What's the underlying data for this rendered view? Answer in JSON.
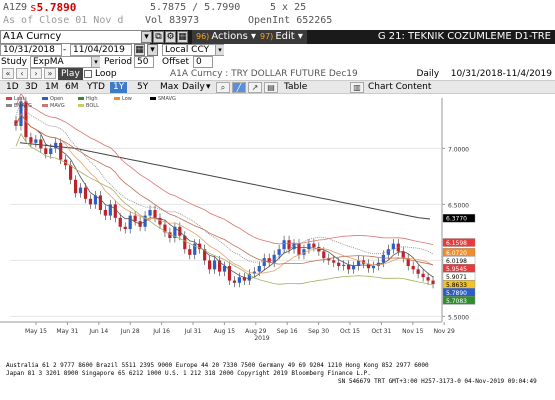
{
  "ticker": {
    "symbol": "A1Z9",
    "price_prefix": "s",
    "price": "5.7890",
    "bid_ask": "5.7875 / 5.7990",
    "size": "5 x 25",
    "as_of": "As of Close 01 Nov d",
    "vol_label": "Vol",
    "vol_value": "83973",
    "oi_label": "OpenInt",
    "oi_value": "652265"
  },
  "command_bar": {
    "security": "A1A Curncy",
    "actions_num": "96)",
    "actions_label": "Actions",
    "edit_num": "97)",
    "edit_label": "Edit",
    "title": "G 21: TEKNIK COZUMLEME D1-TRE"
  },
  "settings": {
    "start_date": "10/31/2018",
    "end_date": "11/04/2019",
    "currency": "Local CCY",
    "study_label": "Study",
    "study_value": "ExpMA",
    "period_label": "Period",
    "period_value": "50",
    "offset_label": "Offset",
    "offset_value": "0",
    "play_label": "Play",
    "loop_label": "Loop",
    "chart_title": "A1A Curncy : TRY DOLLAR FUTURE Dec19",
    "frequency": "Daily",
    "range": "10/31/2018-11/4/2019"
  },
  "toolbar": {
    "periods": [
      "1D",
      "3D",
      "1M",
      "6M",
      "YTD",
      "1Y",
      "5Y",
      "Max"
    ],
    "active_period": "1Y",
    "frequency": "Daily",
    "table_label": "Table",
    "chart_content_label": "Chart Content"
  },
  "legend": [
    "Last",
    "Open",
    "High",
    "Low",
    "SMAVG",
    "EMAVG",
    "MAVG",
    "BOLL"
  ],
  "chart_data": {
    "type": "candlestick",
    "x_tick_labels": [
      "May 15",
      "May 31",
      "Jun 14",
      "Jun 28",
      "Jul 16",
      "Jul 31",
      "Aug 15",
      "Aug 29",
      "Sep 16",
      "Sep 30",
      "Oct 15",
      "Oct 31",
      "Nov 15",
      "Nov 29"
    ],
    "year_label": "2019",
    "y_tick_labels": [
      "7.0000",
      "6.5000",
      "6.0000",
      "5.5000"
    ],
    "ylim": [
      5.45,
      7.45
    ],
    "value_tags": [
      {
        "label": "6.3770",
        "value": 6.377,
        "color": "#000000",
        "text_color": "#ffffff"
      },
      {
        "label": "6.1598",
        "value": 6.1598,
        "color": "#e83a3a",
        "text_color": "#ffffff"
      },
      {
        "label": "6.0720",
        "value": 6.072,
        "color": "#f08c2a",
        "text_color": "#ffffff"
      },
      {
        "label": "6.0198",
        "value": 6.0198,
        "color": "#ffffff",
        "text_color": "#000000"
      },
      {
        "label": "5.9545",
        "value": 5.9545,
        "color": "#e83a3a",
        "text_color": "#ffffff"
      },
      {
        "label": "5.9071",
        "value": 5.9071,
        "color": "#ffffff",
        "text_color": "#000000"
      },
      {
        "label": "5.8633",
        "value": 5.8633,
        "color": "#f2c12e",
        "text_color": "#000000"
      },
      {
        "label": "5.7890",
        "value": 5.789,
        "color": "#2b5fc7",
        "text_color": "#ffffff"
      },
      {
        "label": "5.7083",
        "value": 5.7083,
        "color": "#2f8f2f",
        "text_color": "#ffffff"
      }
    ],
    "close_values": [
      7.2,
      7.42,
      7.1,
      7.05,
      7.08,
      7.0,
      6.95,
      7.0,
      7.05,
      6.9,
      6.85,
      6.72,
      6.6,
      6.65,
      6.55,
      6.5,
      6.58,
      6.45,
      6.4,
      6.5,
      6.38,
      6.3,
      6.28,
      6.4,
      6.35,
      6.3,
      6.4,
      6.45,
      6.38,
      6.32,
      6.25,
      6.2,
      6.3,
      6.22,
      6.1,
      6.05,
      6.15,
      6.1,
      6.0,
      5.92,
      6.0,
      5.9,
      5.95,
      5.82,
      5.8,
      5.85,
      5.82,
      5.88,
      5.9,
      5.95,
      6.02,
      5.98,
      6.05,
      6.1,
      6.18,
      6.1,
      6.15,
      6.05,
      6.1,
      6.15,
      6.12,
      6.08,
      6.02,
      6.0,
      5.98,
      5.95,
      5.96,
      5.92,
      5.95,
      6.0,
      5.97,
      5.93,
      5.95,
      5.98,
      6.05,
      6.1,
      6.15,
      6.08,
      6.02,
      5.95,
      5.92,
      5.88,
      5.85,
      5.82,
      5.79
    ],
    "ema_long": [
      7.05,
      7.04,
      7.03,
      7.02,
      7.01,
      7.0,
      6.98,
      6.96,
      6.94,
      6.92,
      6.9,
      6.88,
      6.86,
      6.84,
      6.82,
      6.8,
      6.78,
      6.76,
      6.74,
      6.72,
      6.7,
      6.68,
      6.66,
      6.64,
      6.62,
      6.6,
      6.58,
      6.56,
      6.54,
      6.52,
      6.5,
      6.48,
      6.46,
      6.44,
      6.42,
      6.4,
      6.38,
      6.37
    ]
  },
  "footer": {
    "line1": "Australia 61 2 9777 8600 Brazil 5511 2395 9000 Europe 44 20 7330 7500 Germany 49 69 9204 1210 Hong Kong 852 2977 6000",
    "line2": "Japan 81 3 3201 8900          Singapore 65 6212 1000          U.S. 1 212 318 2000          Copyright 2019 Bloomberg Finance L.P.",
    "line3": "SN 546679 TRT  GMT+3:00 H257-3173-0 04-Nov-2019 09:04:49"
  }
}
